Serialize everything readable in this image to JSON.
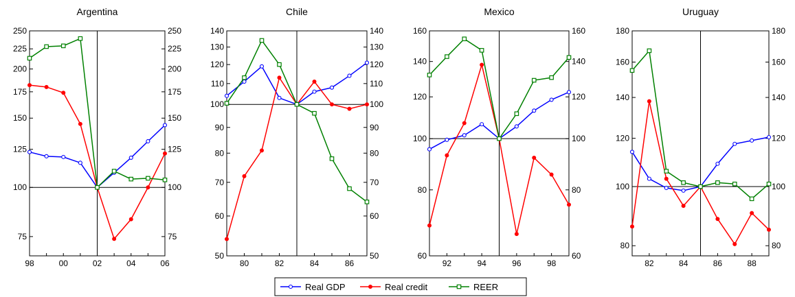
{
  "chart_data": [
    {
      "type": "line",
      "title": "Argentina",
      "x": [
        1998,
        1999,
        2000,
        2001,
        2002,
        2003,
        2004,
        2005,
        2006
      ],
      "xticks": [
        {
          "v": 1998,
          "label": "98"
        },
        {
          "v": 2000,
          "label": "00"
        },
        {
          "v": 2002,
          "label": "02"
        },
        {
          "v": 2004,
          "label": "04"
        },
        {
          "v": 2006,
          "label": "06"
        }
      ],
      "yscale": "log",
      "ylim": [
        67,
        250
      ],
      "yticks": [
        75,
        100,
        125,
        150,
        175,
        200,
        225,
        250
      ],
      "ref_x": 2002,
      "ref_y": 100,
      "series": [
        {
          "name": "Real GDP",
          "values": [
            123,
            120,
            119.5,
            115.5,
            100,
            109,
            119,
            131,
            144
          ]
        },
        {
          "name": "Real credit",
          "values": [
            182,
            180,
            174,
            145,
            100,
            74,
            83,
            100,
            122
          ]
        },
        {
          "name": "REER",
          "values": [
            213,
            228,
            229,
            239,
            100,
            110,
            105,
            105.5,
            104.5
          ]
        }
      ]
    },
    {
      "type": "line",
      "title": "Chile",
      "x": [
        1979,
        1980,
        1981,
        1982,
        1983,
        1984,
        1985,
        1986,
        1987
      ],
      "xticks": [
        {
          "v": 1980,
          "label": "80"
        },
        {
          "v": 1982,
          "label": "82"
        },
        {
          "v": 1984,
          "label": "84"
        },
        {
          "v": 1986,
          "label": "86"
        }
      ],
      "yscale": "log",
      "ylim": [
        50,
        140
      ],
      "yticks": [
        50,
        60,
        70,
        80,
        90,
        100,
        110,
        120,
        130,
        140
      ],
      "ref_x": 1983,
      "ref_y": 100,
      "series": [
        {
          "name": "Real GDP",
          "values": [
            104,
            111,
            119,
            103,
            100,
            106,
            108,
            114,
            121
          ]
        },
        {
          "name": "Real credit",
          "values": [
            54,
            72,
            81,
            113,
            100,
            111,
            100,
            98,
            100
          ]
        },
        {
          "name": "REER",
          "values": [
            100.5,
            113,
            134,
            120,
            100,
            96,
            78,
            68,
            64
          ]
        }
      ]
    },
    {
      "type": "line",
      "title": "Mexico",
      "x": [
        1991,
        1992,
        1993,
        1994,
        1995,
        1996,
        1997,
        1998,
        1999
      ],
      "xticks": [
        {
          "v": 1992,
          "label": "92"
        },
        {
          "v": 1994,
          "label": "94"
        },
        {
          "v": 1996,
          "label": "96"
        },
        {
          "v": 1998,
          "label": "98"
        }
      ],
      "yscale": "log",
      "ylim": [
        60,
        160
      ],
      "yticks": [
        60,
        80,
        100,
        120,
        140,
        160
      ],
      "ref_x": 1995,
      "ref_y": 100,
      "series": [
        {
          "name": "Real GDP",
          "values": [
            95.5,
            99.5,
            101.5,
            106.5,
            100,
            105.5,
            113,
            118.5,
            122.5
          ]
        },
        {
          "name": "Real credit",
          "values": [
            68.5,
            93,
            107,
            138,
            100,
            66,
            92,
            85.5,
            75
          ]
        },
        {
          "name": "REER",
          "values": [
            132,
            143,
            154.5,
            147,
            100,
            111.5,
            129,
            130.5,
            142.5
          ]
        }
      ]
    },
    {
      "type": "line",
      "title": "Uruguay",
      "x": [
        1981,
        1982,
        1983,
        1984,
        1985,
        1986,
        1987,
        1988,
        1989
      ],
      "xticks": [
        {
          "v": 1982,
          "label": "82"
        },
        {
          "v": 1984,
          "label": "84"
        },
        {
          "v": 1986,
          "label": "86"
        },
        {
          "v": 1988,
          "label": "88"
        }
      ],
      "yscale": "log",
      "ylim": [
        77,
        180
      ],
      "yticks": [
        80,
        100,
        120,
        140,
        160,
        180
      ],
      "ref_x": 1985,
      "ref_y": 100,
      "series": [
        {
          "name": "Real GDP",
          "values": [
            114,
            103,
            99.5,
            98.5,
            100,
            109,
            117.5,
            119,
            120.5
          ]
        },
        {
          "name": "Real credit",
          "values": [
            86,
            138,
            103,
            93,
            100,
            88.5,
            80.5,
            90.5,
            85
          ]
        },
        {
          "name": "REER",
          "values": [
            155,
            167,
            106,
            101.5,
            100,
            101.5,
            101,
            95.5,
            101
          ]
        }
      ]
    }
  ],
  "legend": {
    "placement": "bottom-center",
    "items": [
      {
        "label": "Real GDP",
        "color": "#0000ff"
      },
      {
        "label": "Real credit",
        "color": "#ff0000"
      },
      {
        "label": "REER",
        "color": "#008000"
      }
    ]
  },
  "colors": {
    "Real GDP": "#0000ff",
    "Real credit": "#ff0000",
    "REER": "#008000"
  },
  "markers": {
    "Real GDP": "circle-open",
    "Real credit": "circle-filled",
    "REER": "square-open"
  }
}
